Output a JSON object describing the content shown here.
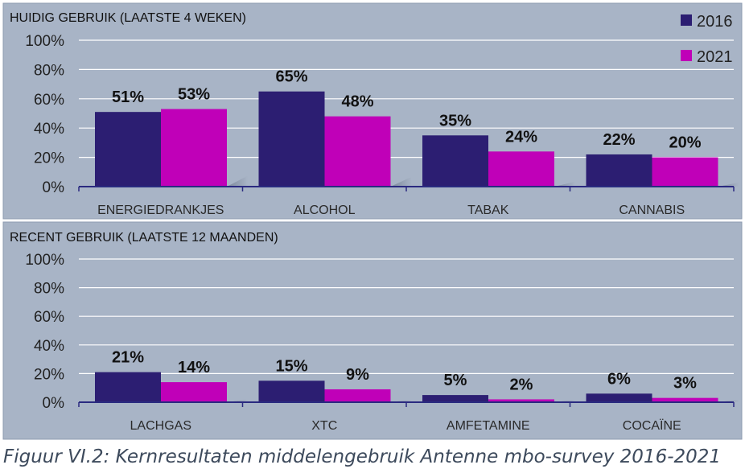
{
  "caption": "Figuur VI.2: Kernresultaten middelengebruik Antenne mbo-survey 2016-2021",
  "colors": {
    "background": "#a8b4c6",
    "series_2016": "#2c1e72",
    "series_2021": "#c000b8",
    "gridline": "#ffffff",
    "axis": "#2a2a80"
  },
  "chart_data": [
    {
      "type": "bar",
      "title": "HUIDIG GEBRUIK (LAATSTE 4 WEKEN)",
      "categories": [
        "ENERGIEDRANKJES",
        "ALCOHOL",
        "TABAK",
        "CANNABIS"
      ],
      "series": [
        {
          "name": "2016",
          "values": [
            51,
            65,
            35,
            22
          ],
          "labels": [
            "51%",
            "65%",
            "35%",
            "22%"
          ]
        },
        {
          "name": "2021",
          "values": [
            53,
            48,
            24,
            20
          ],
          "labels": [
            "53%",
            "48%",
            "24%",
            "20%"
          ]
        }
      ],
      "y_ticks": [
        "0%",
        "20%",
        "40%",
        "60%",
        "80%",
        "100%"
      ],
      "ylim": [
        0,
        100
      ],
      "grid": true,
      "legend": "top-right"
    },
    {
      "type": "bar",
      "title": "RECENT GEBRUIK (LAATSTE 12 MAANDEN)",
      "categories": [
        "LACHGAS",
        "XTC",
        "AMFETAMINE",
        "COCAÏNE"
      ],
      "series": [
        {
          "name": "2016",
          "values": [
            21,
            15,
            5,
            6
          ],
          "labels": [
            "21%",
            "15%",
            "5%",
            "6%"
          ]
        },
        {
          "name": "2021",
          "values": [
            14,
            9,
            2,
            3
          ],
          "labels": [
            "14%",
            "9%",
            "2%",
            "3%"
          ]
        }
      ],
      "y_ticks": [
        "0%",
        "20%",
        "40%",
        "60%",
        "80%",
        "100%"
      ],
      "ylim": [
        0,
        100
      ],
      "grid": true
    }
  ]
}
